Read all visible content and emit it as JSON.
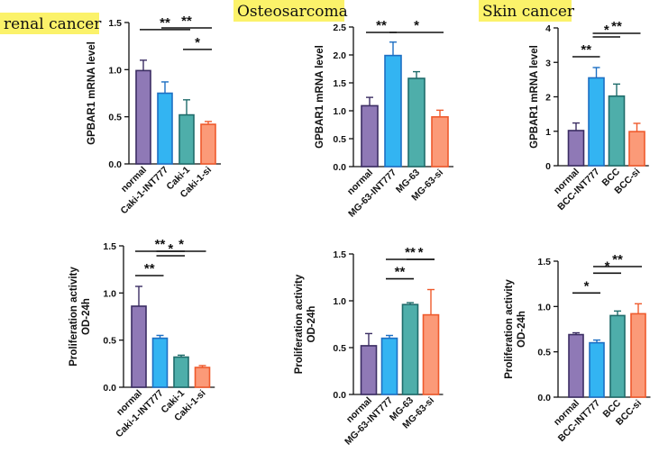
{
  "figure": {
    "section_titles": [
      "renal cancer",
      "Osteosarcoma",
      "Skin cancer"
    ],
    "title_highlight": "#fbf26a"
  },
  "colors": {
    "series": [
      {
        "fill": "#8f79b6",
        "stroke": "#3b2d63"
      },
      {
        "fill": "#33b4f2",
        "stroke": "#1d6fc3"
      },
      {
        "fill": "#4eaeaa",
        "stroke": "#1f6c6b"
      },
      {
        "fill": "#fb9a78",
        "stroke": "#ef5a2c"
      }
    ]
  },
  "chart_data": [
    {
      "id": "renal-mrna",
      "type": "bar",
      "cancer": "renal cancer",
      "ylabel": [
        "GPBAR1 mRNA level"
      ],
      "ylim": [
        0,
        1.5
      ],
      "yticks": [
        "0.0",
        "0.5",
        "1.0",
        "1.5"
      ],
      "categories": [
        "normal",
        "Caki-1-INT777",
        "Caki-1",
        "Caki-1-si"
      ],
      "values": [
        0.99,
        0.75,
        0.52,
        0.42
      ],
      "errors": [
        0.11,
        0.12,
        0.16,
        0.03
      ],
      "significance": [
        {
          "from": 0,
          "to": 2,
          "label": "**"
        },
        {
          "from": 1,
          "to": 3,
          "label": "**"
        },
        {
          "from": 2,
          "to": 3,
          "label": "*"
        }
      ]
    },
    {
      "id": "osteo-mrna",
      "type": "bar",
      "cancer": "Osteosarcoma",
      "ylabel": [
        "GPBAR1 mRNA level"
      ],
      "ylim": [
        0,
        2.5
      ],
      "yticks": [
        "0.0",
        "0.5",
        "1.0",
        "1.5",
        "2.0",
        "2.5"
      ],
      "categories": [
        "normal",
        "MG-63-INT777",
        "MG-63",
        "MG-63-si"
      ],
      "values": [
        1.09,
        1.99,
        1.58,
        0.89
      ],
      "errors": [
        0.15,
        0.24,
        0.12,
        0.12
      ],
      "significance": [
        {
          "from": 0,
          "to": 1,
          "label": "**"
        },
        {
          "from": 1,
          "to": 3,
          "label": "*"
        }
      ]
    },
    {
      "id": "skin-mrna",
      "type": "bar",
      "cancer": "Skin cancer",
      "ylabel": [
        "GPBAR1 mRNA level"
      ],
      "ylim": [
        0,
        4
      ],
      "yticks": [
        "0",
        "1",
        "2",
        "3",
        "4"
      ],
      "categories": [
        "normal",
        "BCC-INT777",
        "BCC",
        "BCC-si"
      ],
      "values": [
        1.02,
        2.55,
        2.02,
        0.99
      ],
      "errors": [
        0.22,
        0.3,
        0.35,
        0.24
      ],
      "significance": [
        {
          "from": 0,
          "to": 1,
          "label": "**"
        },
        {
          "from": 1,
          "to": 2,
          "label": "*"
        },
        {
          "from": 1,
          "to": 3,
          "label": "**"
        }
      ]
    },
    {
      "id": "renal-prolif",
      "type": "bar",
      "cancer": "renal cancer",
      "ylabel": [
        "Proliferation activity",
        "OD-24h"
      ],
      "ylim": [
        0,
        1.5
      ],
      "yticks": [
        "0.0",
        "0.5",
        "1.0",
        "1.5"
      ],
      "categories": [
        "normal",
        "Caki-1-INT777",
        "Caki-1",
        "Caki-1-si"
      ],
      "values": [
        0.86,
        0.52,
        0.32,
        0.21
      ],
      "errors": [
        0.21,
        0.03,
        0.02,
        0.02
      ],
      "significance": [
        {
          "from": 0,
          "to": 1,
          "label": "**"
        },
        {
          "from": 0,
          "to": 2,
          "label": "**"
        },
        {
          "from": 1,
          "to": 2,
          "label": "*"
        },
        {
          "from": 1,
          "to": 3,
          "label": "*"
        }
      ]
    },
    {
      "id": "osteo-prolif",
      "type": "bar",
      "cancer": "Osteosarcoma",
      "ylabel": [
        "Proliferation activity",
        "OD-24h"
      ],
      "ylim": [
        0,
        1.5
      ],
      "yticks": [
        "0.0",
        "0.5",
        "1.0",
        "1.5"
      ],
      "categories": [
        "normal",
        "MG-63-INT777",
        "MG-63",
        "MG-63-si"
      ],
      "values": [
        0.52,
        0.6,
        0.96,
        0.85
      ],
      "errors": [
        0.13,
        0.03,
        0.02,
        0.27
      ],
      "significance": [
        {
          "from": 1,
          "to": 2,
          "label": "**"
        },
        {
          "from": 2,
          "to": 3,
          "label": "*"
        },
        {
          "from": 1,
          "to": 3,
          "label": "**"
        }
      ]
    },
    {
      "id": "skin-prolif",
      "type": "bar",
      "cancer": "Skin cancer",
      "ylabel": [
        "Proliferation activity",
        "OD-24h"
      ],
      "ylim": [
        0,
        1.5
      ],
      "yticks": [
        "0.0",
        "0.5",
        "1.0",
        "1.5"
      ],
      "categories": [
        "normal",
        "BCC-INT777",
        "BCC",
        "BCC-si"
      ],
      "values": [
        0.69,
        0.6,
        0.9,
        0.92
      ],
      "errors": [
        0.02,
        0.03,
        0.05,
        0.11
      ],
      "significance": [
        {
          "from": 0,
          "to": 1,
          "label": "*"
        },
        {
          "from": 1,
          "to": 2,
          "label": "*"
        },
        {
          "from": 1,
          "to": 3,
          "label": "**"
        }
      ]
    }
  ]
}
